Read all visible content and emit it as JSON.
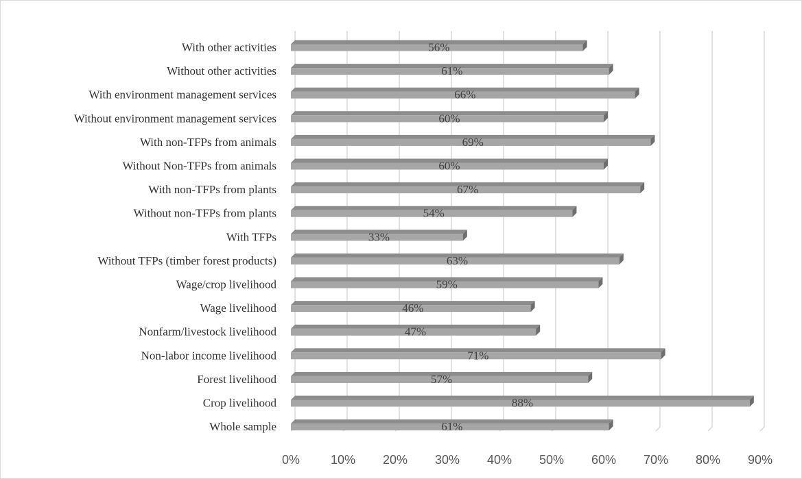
{
  "chart_data": {
    "type": "bar",
    "orientation": "horizontal",
    "categories": [
      "With other activities",
      "Without other activities",
      "With environment management services",
      "Without environment management services",
      "With non-TFPs from animals",
      "Without Non-TFPs from animals",
      "With non-TFPs from plants",
      "Without non-TFPs from plants",
      "With TFPs",
      "Without TFPs (timber forest products)",
      "Wage/crop livelihood",
      "Wage livelihood",
      "Nonfarm/livestock livelihood",
      "Non-labor income livelihood",
      "Forest livelihood",
      "Crop livelihood",
      "Whole sample"
    ],
    "values": [
      0.56,
      0.61,
      0.66,
      0.6,
      0.69,
      0.6,
      0.67,
      0.54,
      0.33,
      0.63,
      0.59,
      0.46,
      0.47,
      0.71,
      0.57,
      0.88,
      0.61
    ],
    "data_labels": [
      "56%",
      "61%",
      "66%",
      "60%",
      "69%",
      "60%",
      "67%",
      "54%",
      "33%",
      "63%",
      "59%",
      "46%",
      "47%",
      "71%",
      "57%",
      "88%",
      "61%"
    ],
    "xlim": [
      0,
      0.9
    ],
    "x_ticks": [
      0,
      0.1,
      0.2,
      0.3,
      0.4,
      0.5,
      0.6,
      0.7,
      0.8,
      0.9
    ],
    "x_tick_labels": [
      "0%",
      "10%",
      "20%",
      "30%",
      "40%",
      "50%",
      "60%",
      "70%",
      "80%",
      "90%"
    ],
    "grid": "vertical",
    "style": "3d",
    "bar_color": "#a6a6a6",
    "bar_side_color": "#6e6e6e",
    "gridline_color": "#d9d9d9"
  }
}
